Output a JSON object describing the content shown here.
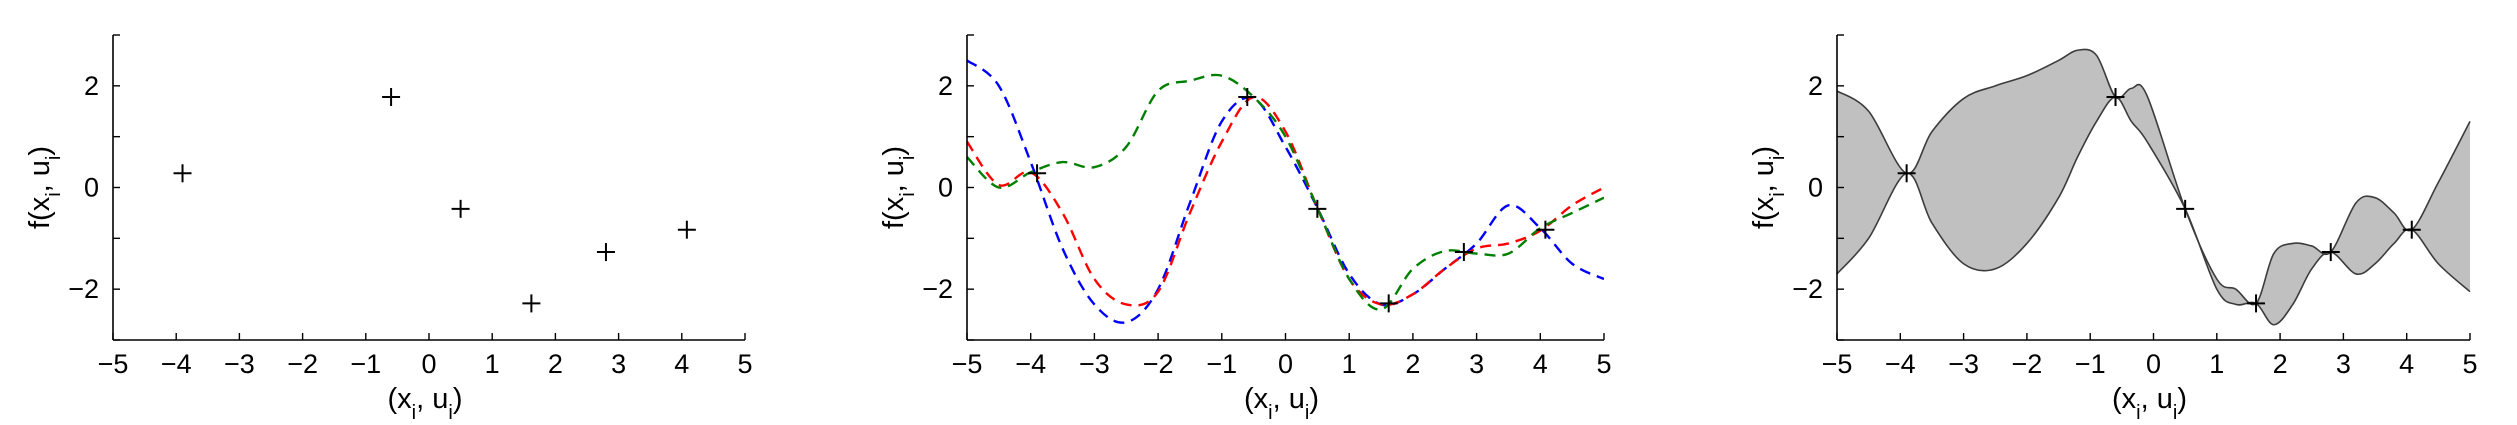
{
  "figure": {
    "panels": [
      {
        "xlabel": "(x_i, u_i)",
        "ylabel": "f(x_i, u_i)"
      },
      {
        "xlabel": "(x_i, u_i)",
        "ylabel": "f(x_i, u_i)"
      },
      {
        "xlabel": "(x_i, u_i)",
        "ylabel": "f(x_i, u_i)"
      }
    ]
  },
  "chart_data": [
    {
      "type": "scatter",
      "title": "",
      "xlabel": "(x_i, u_i)",
      "ylabel": "f(x_i, u_i)",
      "xlim": [
        -5,
        5
      ],
      "ylim": [
        -3,
        3
      ],
      "xticks": [
        "−5",
        "−4",
        "−3",
        "−2",
        "−1",
        "0",
        "1",
        "2",
        "3",
        "4",
        "5"
      ],
      "yticks": [
        "2",
        "0",
        "−2"
      ],
      "grid": false,
      "marker": "+",
      "points": [
        {
          "x": -3.9,
          "y": 0.28
        },
        {
          "x": -0.6,
          "y": 1.78
        },
        {
          "x": 0.5,
          "y": -0.42
        },
        {
          "x": 1.62,
          "y": -2.28
        },
        {
          "x": 2.8,
          "y": -1.27
        },
        {
          "x": 4.08,
          "y": -0.83
        }
      ]
    },
    {
      "type": "line",
      "title": "",
      "xlabel": "(x_i, u_i)",
      "ylabel": "f(x_i, u_i)",
      "xlim": [
        -5,
        5
      ],
      "ylim": [
        -3,
        3
      ],
      "xticks": [
        "−5",
        "−4",
        "−3",
        "−2",
        "−1",
        "0",
        "1",
        "2",
        "3",
        "4",
        "5"
      ],
      "yticks": [
        "2",
        "0",
        "−2"
      ],
      "grid": false,
      "line_style": "dashed",
      "points": [
        {
          "x": -3.9,
          "y": 0.28
        },
        {
          "x": -0.6,
          "y": 1.78
        },
        {
          "x": 0.5,
          "y": -0.42
        },
        {
          "x": 1.62,
          "y": -2.28
        },
        {
          "x": 2.8,
          "y": -1.27
        },
        {
          "x": 4.08,
          "y": -0.83
        }
      ],
      "series": [
        {
          "color": "#0000ff",
          "x": [
            -5,
            -4.5,
            -4,
            -3.5,
            -3,
            -2.5,
            -2,
            -1.5,
            -1,
            -0.5,
            0,
            0.5,
            1,
            1.5,
            2,
            2.5,
            3,
            3.5,
            4,
            4.5,
            5
          ],
          "y": [
            2.5,
            2.0,
            0.5,
            -1.2,
            -2.3,
            -2.65,
            -2.0,
            -0.3,
            1.3,
            1.75,
            0.8,
            -0.4,
            -1.7,
            -2.3,
            -2.1,
            -1.6,
            -1.1,
            -0.35,
            -0.8,
            -1.5,
            -1.8
          ]
        },
        {
          "color": "#ff0000",
          "x": [
            -5,
            -4.5,
            -4,
            -3.5,
            -3,
            -2.5,
            -2,
            -1.5,
            -1,
            -0.5,
            0,
            0.5,
            1,
            1.5,
            2,
            2.5,
            3,
            3.5,
            4,
            4.5,
            5
          ],
          "y": [
            0.9,
            0.05,
            0.3,
            -0.5,
            -1.8,
            -2.3,
            -2.05,
            -0.5,
            0.9,
            1.78,
            1.1,
            -0.4,
            -1.8,
            -2.3,
            -2.1,
            -1.6,
            -1.2,
            -1.1,
            -0.85,
            -0.35,
            0.0
          ]
        },
        {
          "color": "#008000",
          "x": [
            -5,
            -4.5,
            -4,
            -3.5,
            -3,
            -2.5,
            -2,
            -1.5,
            -1,
            -0.5,
            0,
            0.5,
            1,
            1.5,
            2,
            2.5,
            3,
            3.5,
            4,
            4.5,
            5
          ],
          "y": [
            0.6,
            0.0,
            0.3,
            0.5,
            0.4,
            0.8,
            1.9,
            2.1,
            2.2,
            1.78,
            1.0,
            -0.4,
            -1.8,
            -2.4,
            -1.6,
            -1.25,
            -1.3,
            -1.3,
            -0.8,
            -0.5,
            -0.2
          ]
        }
      ]
    },
    {
      "type": "area",
      "title": "",
      "xlabel": "(x_i, u_i)",
      "ylabel": "f(x_i, u_i)",
      "xlim": [
        -5,
        5
      ],
      "ylim": [
        -3,
        3
      ],
      "xticks": [
        "−5",
        "−4",
        "−3",
        "−2",
        "−1",
        "0",
        "1",
        "2",
        "3",
        "4",
        "5"
      ],
      "yticks": [
        "2",
        "0",
        "−2"
      ],
      "grid": false,
      "fill_color": "#c0c0c0",
      "points": [
        {
          "x": -3.9,
          "y": 0.28
        },
        {
          "x": -0.6,
          "y": 1.78
        },
        {
          "x": 0.5,
          "y": -0.42
        },
        {
          "x": 1.62,
          "y": -2.28
        },
        {
          "x": 2.8,
          "y": -1.27
        },
        {
          "x": 4.08,
          "y": -0.83
        }
      ],
      "x": [
        -5,
        -4.5,
        -3.9,
        -3.5,
        -3,
        -2.5,
        -2,
        -1.5,
        -1.2,
        -0.9,
        -0.6,
        -0.35,
        -0.1,
        0.5,
        1,
        1.3,
        1.62,
        1.9,
        2.2,
        2.5,
        2.8,
        3.2,
        3.5,
        3.8,
        4.08,
        4.5,
        5
      ],
      "upper": [
        1.9,
        1.5,
        0.28,
        1.1,
        1.75,
        2.0,
        2.2,
        2.5,
        2.7,
        2.6,
        1.78,
        1.95,
        1.8,
        -0.42,
        -1.8,
        -2.0,
        -2.28,
        -1.3,
        -1.1,
        -1.15,
        -1.27,
        -0.3,
        -0.2,
        -0.5,
        -0.83,
        0.1,
        1.3
      ],
      "lower": [
        -1.7,
        -1.0,
        0.28,
        -0.7,
        -1.5,
        -1.6,
        -1.1,
        -0.2,
        0.6,
        1.3,
        1.78,
        1.3,
        0.9,
        -0.42,
        -2.0,
        -2.3,
        -2.28,
        -2.7,
        -2.3,
        -1.6,
        -1.27,
        -1.7,
        -1.5,
        -1.1,
        -0.83,
        -1.5,
        -2.05
      ]
    }
  ]
}
